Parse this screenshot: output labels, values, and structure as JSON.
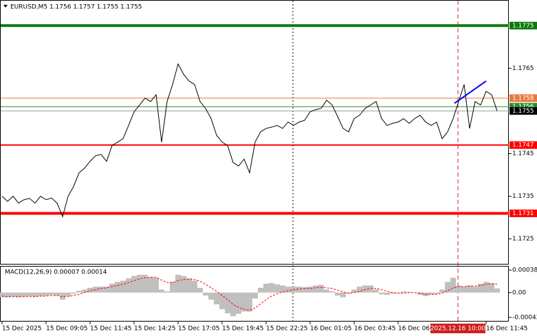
{
  "chart_data": [
    {
      "type": "line",
      "title": "EURUSD,M5  1.1756 1.1757 1.1755 1.1755",
      "color": "#000000",
      "categories": [
        "15 Dec 2025",
        null,
        null,
        null,
        null,
        null,
        null,
        null,
        "15 Dec 09:05",
        null,
        null,
        null,
        null,
        null,
        null,
        null,
        "15 Dec 11:45",
        null,
        null,
        null,
        null,
        null,
        null,
        null,
        "15 Dec 14:25",
        null,
        null,
        null,
        null,
        null,
        null,
        null,
        "15 Dec 17:05",
        null,
        null,
        null,
        null,
        null,
        null,
        null,
        "15 Dec 19:45",
        null,
        null,
        null,
        null,
        null,
        null,
        null,
        "15 Dec 22:25",
        null,
        null,
        null,
        null,
        null,
        null,
        null,
        "16 Dec 01:05",
        null,
        null,
        null,
        null,
        null,
        null,
        null,
        "16 Dec 03:45",
        null,
        null,
        null,
        null,
        null,
        null,
        null,
        "16 Dec 06:25",
        null,
        null,
        null,
        null,
        null,
        null,
        null,
        null,
        null,
        null,
        null,
        null,
        null,
        null,
        null,
        "16 Dec 11:45",
        null,
        null
      ],
      "values": [
        1.1735,
        1.17338,
        1.1735,
        1.17334,
        1.17342,
        1.17345,
        1.17334,
        1.1735,
        1.17342,
        1.17346,
        1.17334,
        1.17302,
        1.1735,
        1.17373,
        1.17405,
        1.17416,
        1.17432,
        1.17445,
        1.17448,
        1.17432,
        1.17469,
        1.17477,
        1.17485,
        1.17516,
        1.17548,
        1.17564,
        1.1758,
        1.17572,
        1.17588,
        1.17477,
        1.17572,
        1.17612,
        1.1766,
        1.17636,
        1.1762,
        1.17612,
        1.17572,
        1.17556,
        1.17532,
        1.17493,
        1.17477,
        1.17469,
        1.17429,
        1.17421,
        1.17437,
        1.17405,
        1.17477,
        1.17501,
        1.17509,
        1.17512,
        1.17516,
        1.17509,
        1.17524,
        1.17516,
        1.17524,
        1.17528,
        1.17548,
        1.17553,
        1.17556,
        1.17575,
        1.17564,
        1.17537,
        1.17509,
        1.17501,
        1.17532,
        1.1754,
        1.17556,
        1.17564,
        1.17572,
        1.17532,
        1.17516,
        1.17521,
        1.17524,
        1.17532,
        1.17521,
        1.17532,
        1.1754,
        1.17524,
        1.17516,
        1.17524,
        1.17485,
        1.17501,
        1.17532,
        1.17572,
        1.17612,
        1.17509,
        1.17572,
        1.17564,
        1.17596,
        1.17588,
        1.1755
      ],
      "ylim": [
        1.1719,
        1.1781
      ],
      "yticks": [
        1.1765,
        1.1745,
        1.1735,
        1.1725
      ],
      "levels": [
        {
          "value": 1.1775,
          "color": "#0a7a0a"
        },
        {
          "value": 1.1758,
          "color": "#e8793a"
        },
        {
          "value": 1.1756,
          "color": "#2e8b2e"
        },
        {
          "value": 1.1747,
          "color": "#ff0000"
        },
        {
          "value": 1.1731,
          "color": "#ff0000"
        }
      ],
      "last_price": 1.1755,
      "trendline": {
        "color": "#0000ff",
        "start": 1.17568,
        "end": 1.1762
      },
      "crosshair_label": "2025.12.16 10:00"
    },
    {
      "type": "macd",
      "title": "MACD(12,26,9) 0.00007 0.00014",
      "histogram": {
        "color": "#c0c0c0",
        "values": [
          -8e-05,
          -8e-05,
          -7e-05,
          -8e-05,
          -7e-05,
          -6e-05,
          -7e-05,
          -6e-05,
          -5e-05,
          -4e-05,
          -5e-05,
          -0.00012,
          -6e-05,
          -2e-05,
          3e-05,
          5e-05,
          8e-05,
          0.0001,
          0.0001,
          0.0001,
          0.00015,
          0.00018,
          0.0002,
          0.00024,
          0.00028,
          0.0003,
          0.0003,
          0.00026,
          0.00025,
          5e-05,
          2e-05,
          0.00018,
          0.0003,
          0.00028,
          0.00024,
          0.0002,
          8e-05,
          -5e-05,
          -0.00012,
          -0.0002,
          -0.00028,
          -0.00035,
          -0.0004,
          -0.00036,
          -0.00032,
          -0.00032,
          -0.0001,
          8e-05,
          0.00015,
          0.00016,
          0.00014,
          0.00012,
          0.0001,
          0.0001,
          0.0001,
          9e-05,
          0.0001,
          0.00012,
          0.00013,
          5e-05,
          2e-05,
          -5e-05,
          -8e-05,
          -2e-05,
          5e-05,
          0.0001,
          0.00012,
          0.00012,
          5e-05,
          -3e-05,
          -4e-05,
          -2e-05,
          -1e-05,
          2e-05,
          1e-05,
          0,
          -4e-05,
          -6e-05,
          -3e-05,
          -2e-05,
          5e-05,
          0.00018,
          0.00025,
          0.00012,
          0.0001,
          0.00012,
          0.0001,
          0.00015,
          0.00018,
          0.00016,
          7e-05
        ]
      },
      "signal": {
        "color": "#ff0000",
        "values": [
          -6e-05,
          -7e-05,
          -7e-05,
          -7e-05,
          -7e-05,
          -7e-05,
          -7e-05,
          -6e-05,
          -6e-05,
          -5e-05,
          -5e-05,
          -7e-05,
          -7e-05,
          -5e-05,
          -3e-05,
          0,
          3e-05,
          5e-05,
          7e-05,
          8e-05,
          0.0001,
          0.00012,
          0.00014,
          0.00017,
          0.0002,
          0.00023,
          0.00025,
          0.00026,
          0.00026,
          0.00021,
          0.00017,
          0.00017,
          0.0002,
          0.00022,
          0.00023,
          0.00022,
          0.00019,
          0.00014,
          8e-05,
          2e-05,
          -5e-05,
          -0.00012,
          -0.0002,
          -0.00025,
          -0.00028,
          -0.0003,
          -0.00026,
          -0.00019,
          -0.00012,
          -6e-05,
          -2e-05,
          1e-05,
          3e-05,
          5e-05,
          6e-05,
          7e-05,
          7e-05,
          8e-05,
          9e-05,
          8e-05,
          7e-05,
          4e-05,
          1e-05,
          -1e-05,
          0,
          2e-05,
          5e-05,
          7e-05,
          7e-05,
          5e-05,
          2e-05,
          0,
          -1e-05,
          -1e-05,
          0,
          0,
          -1e-05,
          -3e-05,
          -3e-05,
          -3e-05,
          -1e-05,
          3e-05,
          8e-05,
          0.0001,
          0.0001,
          0.00011,
          0.00011,
          0.00012,
          0.00014,
          0.00015,
          0.00014
        ]
      },
      "ylim": [
        -0.00049,
        0.00045
      ],
      "yticks": [
        0.00038,
        {
          "value": 0,
          "label": "0.00"
        },
        -0.00042
      ]
    }
  ]
}
